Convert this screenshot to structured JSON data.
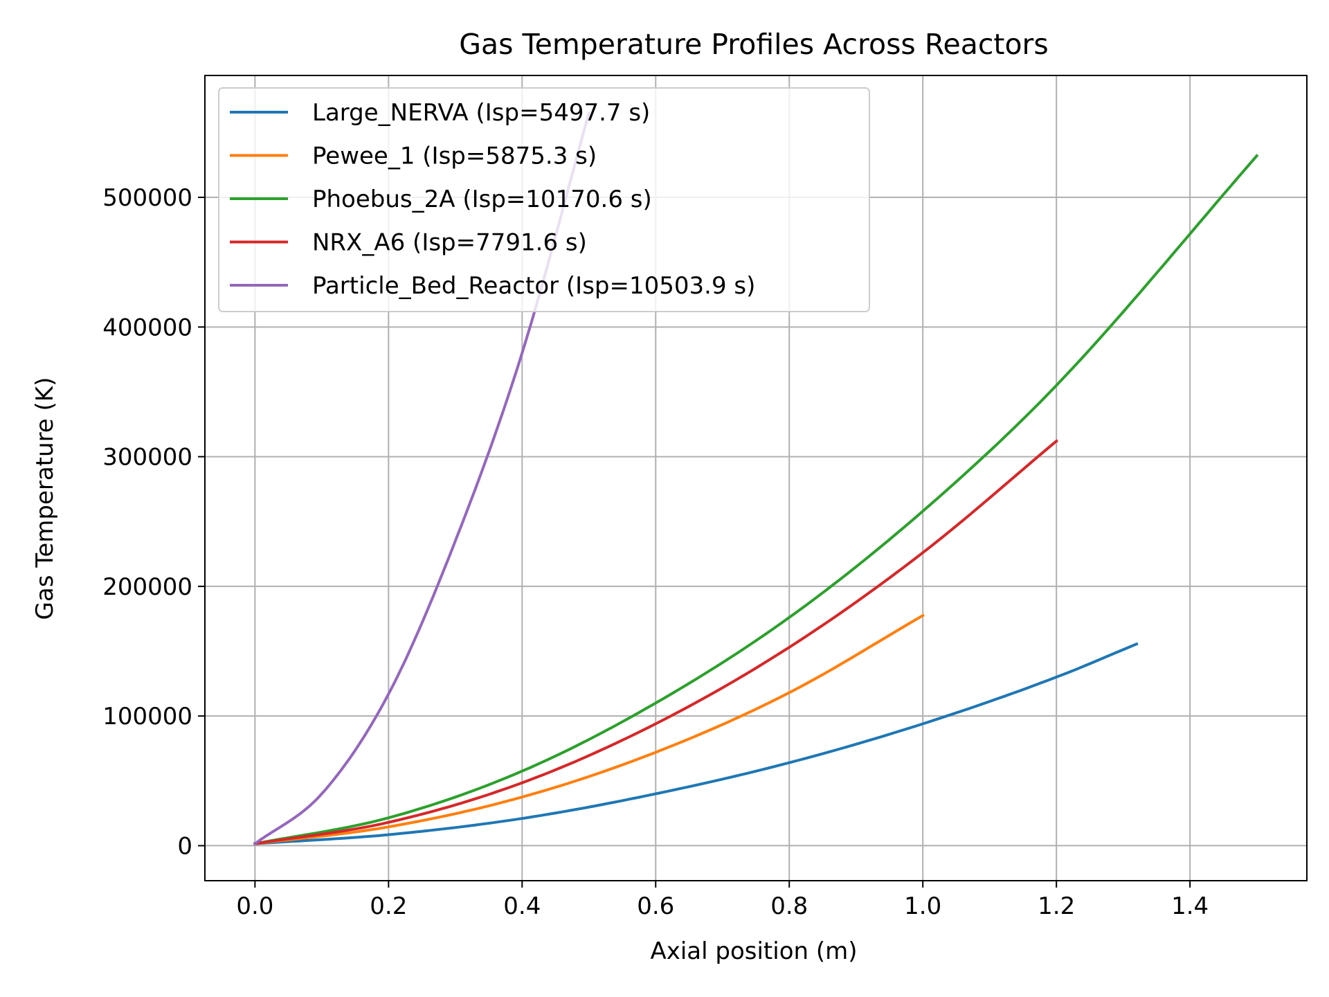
{
  "chart_data": {
    "type": "line",
    "title": "Gas Temperature Profiles Across Reactors",
    "xlabel": "Axial position (m)",
    "ylabel": "Gas Temperature (K)",
    "xlim": [
      -0.075,
      1.575
    ],
    "ylim": [
      -27000,
      594000
    ],
    "x_ticks": [
      0.0,
      0.2,
      0.4,
      0.6,
      0.8,
      1.0,
      1.2,
      1.4
    ],
    "x_tick_labels": [
      "0.0",
      "0.2",
      "0.4",
      "0.6",
      "0.8",
      "1.0",
      "1.2",
      "1.4"
    ],
    "y_ticks": [
      0,
      100000,
      200000,
      300000,
      400000,
      500000
    ],
    "y_tick_labels": [
      "0",
      "100000",
      "200000",
      "300000",
      "400000",
      "500000"
    ],
    "grid": true,
    "legend_position": "top-left",
    "series": [
      {
        "name": "Large_NERVA (Isp=5497.7 s)",
        "color": "#1f77b4",
        "x": [
          0.0,
          0.2,
          0.4,
          0.6,
          0.8,
          1.0,
          1.2,
          1.32
        ],
        "y": [
          1500,
          8500,
          21000,
          40000,
          64000,
          94000,
          130000,
          155500
        ]
      },
      {
        "name": "Pewee_1 (Isp=5875.3 s)",
        "color": "#ff7f0e",
        "x": [
          0.0,
          0.2,
          0.4,
          0.6,
          0.8,
          1.0
        ],
        "y": [
          1500,
          14500,
          37500,
          72000,
          118000,
          177500
        ]
      },
      {
        "name": "Phoebus_2A (Isp=10170.6 s)",
        "color": "#2ca02c",
        "x": [
          0.0,
          0.2,
          0.4,
          0.6,
          0.8,
          1.0,
          1.2,
          1.5
        ],
        "y": [
          1500,
          21500,
          57500,
          110000,
          176000,
          258000,
          355000,
          532000
        ]
      },
      {
        "name": "NRX_A6 (Isp=7791.6 s)",
        "color": "#d62728",
        "x": [
          0.0,
          0.2,
          0.4,
          0.6,
          0.8,
          1.0,
          1.2
        ],
        "y": [
          1500,
          18000,
          48500,
          94000,
          153000,
          226000,
          312000
        ]
      },
      {
        "name": "Particle_Bed_Reactor (Isp=10503.9 s)",
        "color": "#9467bd",
        "x": [
          0.0,
          0.1,
          0.2,
          0.3,
          0.4,
          0.5
        ],
        "y": [
          1500,
          40000,
          117000,
          235000,
          380000,
          565000
        ]
      }
    ]
  }
}
